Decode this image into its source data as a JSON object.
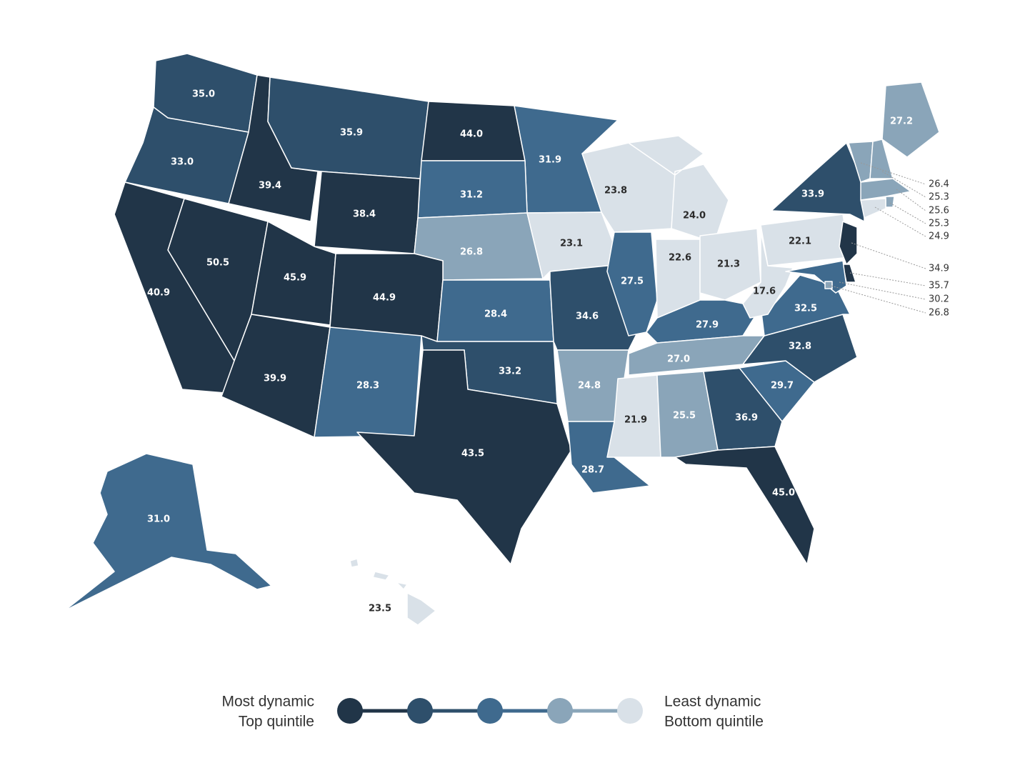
{
  "chart_data": {
    "type": "choropleth",
    "values": [
      35.0,
      33.0,
      39.4,
      35.9,
      44.0,
      31.9,
      31.2,
      38.4,
      26.8,
      23.1,
      23.8,
      24.0,
      50.5,
      40.9,
      45.9,
      44.9,
      39.9,
      28.3,
      28.4,
      33.2,
      43.5,
      34.6,
      24.8,
      28.7,
      27.5,
      22.6,
      21.3,
      27.9,
      27.0,
      21.9,
      25.5,
      36.9,
      45.0,
      29.7,
      32.8,
      32.5,
      17.6,
      22.1,
      33.9,
      27.2,
      26.4,
      25.3,
      25.6,
      25.3,
      24.9,
      34.9,
      35.7,
      30.2,
      26.8,
      31.0,
      23.5
    ],
    "value_labels": [
      "35.0",
      "33.0",
      "39.4",
      "35.9",
      "44.0",
      "31.9",
      "31.2",
      "38.4",
      "26.8",
      "23.1",
      "23.8",
      "24.0",
      "50.5",
      "40.9",
      "45.9",
      "44.9",
      "39.9",
      "28.3",
      "28.4",
      "33.2",
      "43.5",
      "34.6",
      "24.8",
      "28.7",
      "27.5",
      "22.6",
      "21.3",
      "27.9",
      "27.0",
      "21.9",
      "25.5",
      "36.9",
      "45.0",
      "29.7",
      "32.8",
      "32.5",
      "17.6",
      "22.1",
      "33.9",
      "27.2",
      "26.4",
      "25.3",
      "25.6",
      "25.3",
      "24.9",
      "34.9",
      "35.7",
      "30.2",
      "26.8",
      "31.0",
      "23.5"
    ],
    "classes": [
      1,
      1,
      0,
      1,
      0,
      2,
      2,
      0,
      3,
      4,
      4,
      4,
      0,
      0,
      0,
      0,
      0,
      2,
      2,
      1,
      0,
      1,
      3,
      2,
      2,
      4,
      4,
      2,
      3,
      4,
      3,
      1,
      0,
      2,
      1,
      2,
      4,
      4,
      1,
      3,
      3,
      3,
      3,
      3,
      4,
      0,
      0,
      2,
      3,
      2,
      4
    ],
    "legend": {
      "colors": [
        "#213548",
        "#2e4f6b",
        "#3f6a8e",
        "#8aa5b9",
        "#d9e1e8"
      ],
      "left": [
        "Most dynamic",
        "Top quintile"
      ],
      "right": [
        "Least dynamic",
        "Bottom quintile"
      ]
    }
  }
}
